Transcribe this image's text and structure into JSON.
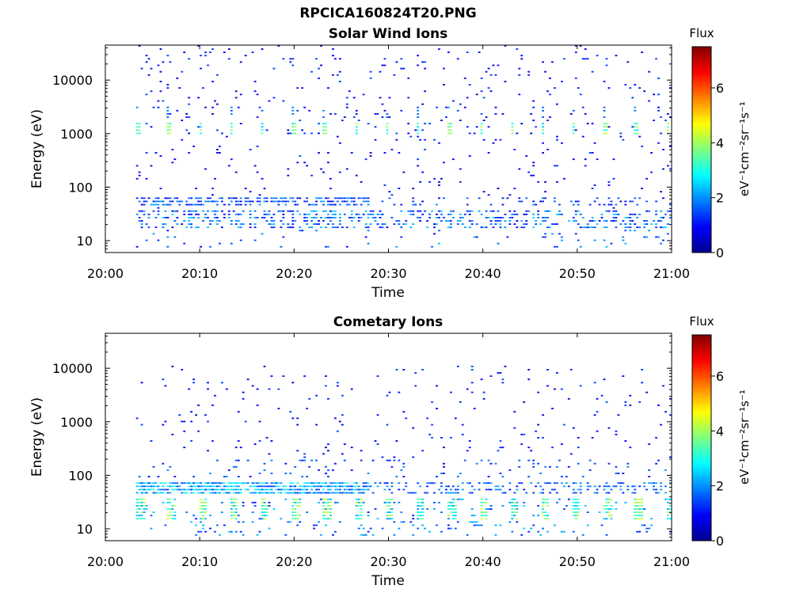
{
  "figure_title": "RPCICA160824T20.PNG",
  "chart_data": [
    {
      "type": "heatmap",
      "title": "Solar Wind Ions",
      "xlabel": "Time",
      "ylabel": "Energy (eV)",
      "x_ticks": [
        "20:00",
        "20:10",
        "20:20",
        "20:30",
        "20:40",
        "20:50",
        "21:00"
      ],
      "x_range": [
        "20:00",
        "21:00"
      ],
      "y_scale": "log",
      "y_ticks": [
        "10",
        "100",
        "1000",
        "10000"
      ],
      "y_range": [
        6,
        45000
      ],
      "colorbar": {
        "label": "Flux",
        "unit_label": "eV⁻¹cm⁻²sr⁻¹s⁻¹",
        "ticks": [
          "0",
          "2",
          "4",
          "6"
        ],
        "range": [
          0,
          7.5
        ],
        "colormap": "jet"
      },
      "data_start_minute": 3.2,
      "grid": false,
      "features": [
        {
          "energy_eV": 1200,
          "peak_flux": 4.0,
          "description": "sweep peaks every ~3.3 min"
        },
        {
          "energy_eV": 50,
          "peak_flux": 2.0,
          "description": "continuous band until ~20:28"
        },
        {
          "energy_eV": 25,
          "peak_flux": 2.5,
          "description": "low energy bursts"
        }
      ]
    },
    {
      "type": "heatmap",
      "title": "Cometary Ions",
      "xlabel": "Time",
      "ylabel": "Energy (eV)",
      "x_ticks": [
        "20:00",
        "20:10",
        "20:20",
        "20:30",
        "20:40",
        "20:50",
        "21:00"
      ],
      "x_range": [
        "20:00",
        "21:00"
      ],
      "y_scale": "log",
      "y_ticks": [
        "10",
        "100",
        "1000",
        "10000"
      ],
      "y_range": [
        6,
        45000
      ],
      "colorbar": {
        "label": "Flux",
        "unit_label": "eV⁻¹cm⁻²sr⁻¹s⁻¹",
        "ticks": [
          "0",
          "2",
          "4",
          "6"
        ],
        "range": [
          0,
          7.5
        ],
        "colormap": "jet"
      },
      "data_start_minute": 3.2,
      "grid": false,
      "features": [
        {
          "energy_eV": 55,
          "peak_flux": 3.0,
          "description": "dense band until ~20:28"
        },
        {
          "energy_eV": 22,
          "peak_flux": 4.0,
          "description": "bright periodic bursts 15-35 eV"
        },
        {
          "energy_eV": 1300,
          "peak_flux": 1.0,
          "description": "sparse high energy counts"
        }
      ]
    }
  ]
}
